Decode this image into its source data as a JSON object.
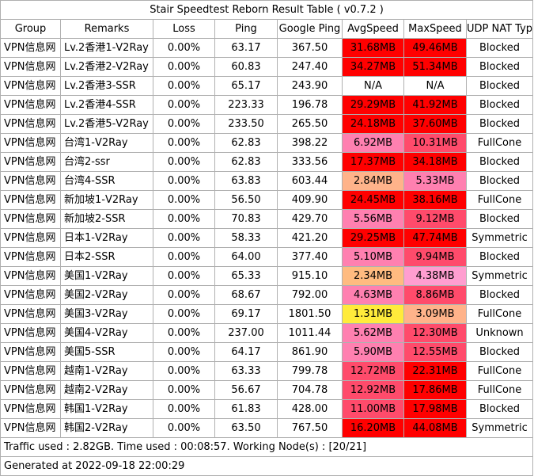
{
  "title": "Stair Speedtest Reborn Result Table ( v0.7.2 )",
  "columns": [
    "Group",
    "Remarks",
    "Loss",
    "Ping",
    "Google Ping",
    "AvgSpeed",
    "MaxSpeed",
    "UDP NAT Type"
  ],
  "colors": {
    "red": "#ff0000",
    "red_light": "#ff3333",
    "pink_hot": "#ff4b6b",
    "pink": "#ff80b0",
    "pink_light": "#ff9ed0",
    "peach": "#ffb38a",
    "orange": "#ffbb80",
    "yellow": "#ffeb3b"
  },
  "rows": [
    {
      "group": "VPN信息网",
      "remarks": "Lv.2香港1-V2Ray",
      "loss": "0.00%",
      "ping": "63.17",
      "gping": "367.50",
      "avg": "31.68MB",
      "avg_color": "#ff0000",
      "max": "49.46MB",
      "max_color": "#ff0000",
      "nat": "Blocked"
    },
    {
      "group": "VPN信息网",
      "remarks": "Lv.2香港2-V2Ray",
      "loss": "0.00%",
      "ping": "60.83",
      "gping": "247.40",
      "avg": "34.27MB",
      "avg_color": "#ff0000",
      "max": "51.34MB",
      "max_color": "#ff0000",
      "nat": "Blocked"
    },
    {
      "group": "VPN信息网",
      "remarks": "Lv.2香港3-SSR",
      "loss": "0.00%",
      "ping": "65.17",
      "gping": "243.90",
      "avg": "N/A",
      "avg_color": "#ffffff",
      "max": "N/A",
      "max_color": "#ffffff",
      "nat": "Blocked"
    },
    {
      "group": "VPN信息网",
      "remarks": "Lv.2香港4-SSR",
      "loss": "0.00%",
      "ping": "223.33",
      "gping": "196.78",
      "avg": "29.29MB",
      "avg_color": "#ff0000",
      "max": "41.92MB",
      "max_color": "#ff0000",
      "nat": "Blocked"
    },
    {
      "group": "VPN信息网",
      "remarks": "Lv.2香港5-V2Ray",
      "loss": "0.00%",
      "ping": "233.50",
      "gping": "265.50",
      "avg": "24.18MB",
      "avg_color": "#ff0000",
      "max": "37.60MB",
      "max_color": "#ff0000",
      "nat": "Blocked"
    },
    {
      "group": "VPN信息网",
      "remarks": "台湾1-V2Ray",
      "loss": "0.00%",
      "ping": "62.83",
      "gping": "398.22",
      "avg": "6.92MB",
      "avg_color": "#ff80b0",
      "max": "10.31MB",
      "max_color": "#ff4b6b",
      "nat": "FullCone"
    },
    {
      "group": "VPN信息网",
      "remarks": "台湾2-ssr",
      "loss": "0.00%",
      "ping": "62.83",
      "gping": "333.56",
      "avg": "17.37MB",
      "avg_color": "#ff0000",
      "max": "34.18MB",
      "max_color": "#ff0000",
      "nat": "Blocked"
    },
    {
      "group": "VPN信息网",
      "remarks": "台湾4-SSR",
      "loss": "0.00%",
      "ping": "63.83",
      "gping": "603.44",
      "avg": "2.84MB",
      "avg_color": "#ffb38a",
      "max": "5.33MB",
      "max_color": "#ff80b0",
      "nat": "Blocked"
    },
    {
      "group": "VPN信息网",
      "remarks": "新加坡1-V2Ray",
      "loss": "0.00%",
      "ping": "56.50",
      "gping": "409.90",
      "avg": "24.45MB",
      "avg_color": "#ff0000",
      "max": "38.16MB",
      "max_color": "#ff0000",
      "nat": "FullCone"
    },
    {
      "group": "VPN信息网",
      "remarks": "新加坡2-SSR",
      "loss": "0.00%",
      "ping": "70.83",
      "gping": "429.70",
      "avg": "5.56MB",
      "avg_color": "#ff80b0",
      "max": "9.12MB",
      "max_color": "#ff4b6b",
      "nat": "Blocked"
    },
    {
      "group": "VPN信息网",
      "remarks": "日本1-V2Ray",
      "loss": "0.00%",
      "ping": "58.33",
      "gping": "421.20",
      "avg": "29.25MB",
      "avg_color": "#ff0000",
      "max": "47.74MB",
      "max_color": "#ff0000",
      "nat": "Symmetric"
    },
    {
      "group": "VPN信息网",
      "remarks": "日本2-SSR",
      "loss": "0.00%",
      "ping": "64.00",
      "gping": "377.40",
      "avg": "5.10MB",
      "avg_color": "#ff80b0",
      "max": "9.94MB",
      "max_color": "#ff4b6b",
      "nat": "Blocked"
    },
    {
      "group": "VPN信息网",
      "remarks": "美国1-V2Ray",
      "loss": "0.00%",
      "ping": "65.33",
      "gping": "915.10",
      "avg": "2.34MB",
      "avg_color": "#ffbb80",
      "max": "4.38MB",
      "max_color": "#ff9ed0",
      "nat": "Symmetric"
    },
    {
      "group": "VPN信息网",
      "remarks": "美国2-V2Ray",
      "loss": "0.00%",
      "ping": "68.67",
      "gping": "792.00",
      "avg": "4.63MB",
      "avg_color": "#ff80b0",
      "max": "8.86MB",
      "max_color": "#ff4b6b",
      "nat": "Blocked"
    },
    {
      "group": "VPN信息网",
      "remarks": "美国3-V2Ray",
      "loss": "0.00%",
      "ping": "69.17",
      "gping": "1801.50",
      "avg": "1.31MB",
      "avg_color": "#ffeb3b",
      "max": "3.09MB",
      "max_color": "#ffb38a",
      "nat": "FullCone"
    },
    {
      "group": "VPN信息网",
      "remarks": "美国4-V2Ray",
      "loss": "0.00%",
      "ping": "237.00",
      "gping": "1011.44",
      "avg": "5.62MB",
      "avg_color": "#ff80b0",
      "max": "12.30MB",
      "max_color": "#ff4b6b",
      "nat": "Unknown"
    },
    {
      "group": "VPN信息网",
      "remarks": "美国5-SSR",
      "loss": "0.00%",
      "ping": "64.17",
      "gping": "861.90",
      "avg": "5.90MB",
      "avg_color": "#ff80b0",
      "max": "12.55MB",
      "max_color": "#ff4b6b",
      "nat": "Blocked"
    },
    {
      "group": "VPN信息网",
      "remarks": "越南1-V2Ray",
      "loss": "0.00%",
      "ping": "63.33",
      "gping": "799.78",
      "avg": "12.72MB",
      "avg_color": "#ff4b6b",
      "max": "22.31MB",
      "max_color": "#ff0000",
      "nat": "FullCone"
    },
    {
      "group": "VPN信息网",
      "remarks": "越南2-V2Ray",
      "loss": "0.00%",
      "ping": "56.67",
      "gping": "704.78",
      "avg": "12.92MB",
      "avg_color": "#ff4b6b",
      "max": "17.86MB",
      "max_color": "#ff0000",
      "nat": "FullCone"
    },
    {
      "group": "VPN信息网",
      "remarks": "韩国1-V2Ray",
      "loss": "0.00%",
      "ping": "61.83",
      "gping": "428.00",
      "avg": "11.00MB",
      "avg_color": "#ff4b6b",
      "max": "17.98MB",
      "max_color": "#ff0000",
      "nat": "Blocked"
    },
    {
      "group": "VPN信息网",
      "remarks": "韩国2-V2Ray",
      "loss": "0.00%",
      "ping": "63.50",
      "gping": "767.50",
      "avg": "16.20MB",
      "avg_color": "#ff0000",
      "max": "44.08MB",
      "max_color": "#ff0000",
      "nat": "Symmetric"
    }
  ],
  "footer": {
    "traffic": "Traffic used : 2.82GB. Time used : 00:08:57. Working Node(s) : [20/21]",
    "generated": "Generated at 2022-09-18 22:00:29"
  }
}
